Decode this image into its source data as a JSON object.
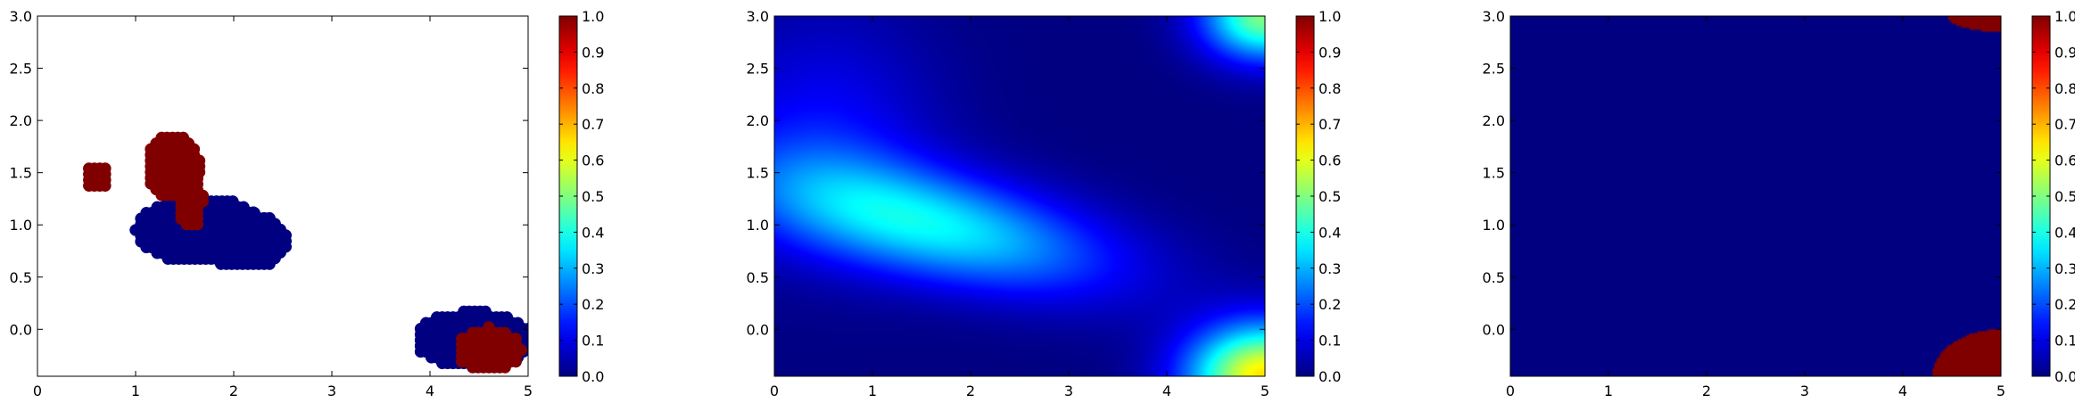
{
  "chart_data": [
    {
      "type": "scatter",
      "panel": "left",
      "description_values": "two classes of points: 0.0 (blue) and 1.0 (dark red)",
      "xlim": [
        0,
        5
      ],
      "ylim": [
        -0.45,
        3.0
      ],
      "xticks": [
        0,
        1,
        2,
        3,
        4,
        5
      ],
      "yticks": [
        0.0,
        0.5,
        1.0,
        1.5,
        2.0,
        2.5,
        3.0
      ],
      "ytick_labels": [
        "0.0",
        "0.5",
        "1.0",
        "1.5",
        "2.0",
        "2.5",
        "3.0"
      ],
      "colorbar": {
        "min": 0.0,
        "max": 1.0,
        "ticks": [
          "0.0",
          "0.1",
          "0.2",
          "0.3",
          "0.4",
          "0.5",
          "0.6",
          "0.7",
          "0.8",
          "0.9",
          "1.0"
        ],
        "colormap": "jet"
      },
      "clusters": [
        {
          "value": 1.0,
          "cx": 0.6,
          "cy": 1.45,
          "rx": 0.13,
          "ry": 0.13
        },
        {
          "value": 0.0,
          "cx": 1.65,
          "cy": 0.95,
          "rx": 0.65,
          "ry": 0.33
        },
        {
          "value": 0.0,
          "cx": 2.1,
          "cy": 0.85,
          "rx": 0.45,
          "ry": 0.28
        },
        {
          "value": 1.0,
          "cx": 1.38,
          "cy": 1.55,
          "rx": 0.28,
          "ry": 0.32
        },
        {
          "value": 1.0,
          "cx": 1.55,
          "cy": 1.25,
          "rx": 0.14,
          "ry": 0.3
        },
        {
          "value": 0.0,
          "cx": 4.45,
          "cy": -0.1,
          "rx": 0.6,
          "ry": 0.28
        },
        {
          "value": 1.0,
          "cx": 4.6,
          "cy": -0.2,
          "rx": 0.33,
          "ry": 0.22
        }
      ]
    },
    {
      "type": "heatmap",
      "panel": "middle",
      "xlim": [
        0,
        5
      ],
      "ylim": [
        -0.45,
        3.0
      ],
      "xticks": [
        0,
        1,
        2,
        3,
        4,
        5
      ],
      "yticks": [
        0.0,
        0.5,
        1.0,
        1.5,
        2.0,
        2.5,
        3.0
      ],
      "ytick_labels": [
        "0.0",
        "0.5",
        "1.0",
        "1.5",
        "2.0",
        "2.5",
        "3.0"
      ],
      "colorbar": {
        "min": 0.0,
        "max": 1.0,
        "ticks": [
          "0.0",
          "0.1",
          "0.2",
          "0.3",
          "0.4",
          "0.5",
          "0.6",
          "0.7",
          "0.8",
          "0.9",
          "1.0"
        ],
        "colormap": "jet"
      },
      "bumps": [
        {
          "cx": 1.6,
          "cy": 1.0,
          "sx": 1.3,
          "sy": 0.45,
          "rho": -0.55,
          "amp": 0.36
        },
        {
          "cx": 0.5,
          "cy": 1.9,
          "sx": 0.8,
          "sy": 0.8,
          "rho": 0.0,
          "amp": 0.12
        },
        {
          "cx": 5.0,
          "cy": -0.45,
          "sx": 0.55,
          "sy": 0.35,
          "rho": 0.0,
          "amp": 0.65
        },
        {
          "cx": 5.0,
          "cy": 3.0,
          "sx": 0.45,
          "sy": 0.3,
          "rho": 0.0,
          "amp": 0.5
        }
      ]
    },
    {
      "type": "heatmap",
      "panel": "right",
      "xlim": [
        0,
        5
      ],
      "ylim": [
        -0.45,
        3.0
      ],
      "xticks": [
        0,
        1,
        2,
        3,
        4,
        5
      ],
      "yticks": [
        0.0,
        0.5,
        1.0,
        1.5,
        2.0,
        2.5,
        3.0
      ],
      "ytick_labels": [
        "0.0",
        "0.5",
        "1.0",
        "1.5",
        "2.0",
        "2.5",
        "3.0"
      ],
      "colorbar": {
        "min": 0.0,
        "max": 1.0,
        "ticks": [
          "0.0",
          "0.1",
          "0.2",
          "0.3",
          "0.4",
          "0.5",
          "0.6",
          "0.7",
          "0.8",
          "0.9",
          "1.0"
        ],
        "colormap": "jet"
      },
      "background_value": 0.0,
      "regions": [
        {
          "value": 1.0,
          "cx": 5.0,
          "cy": -0.45,
          "rx": 0.7,
          "ry": 0.45
        },
        {
          "value": 1.0,
          "cx": 5.0,
          "cy": 3.0,
          "rx": 0.55,
          "ry": 0.15
        }
      ]
    }
  ]
}
